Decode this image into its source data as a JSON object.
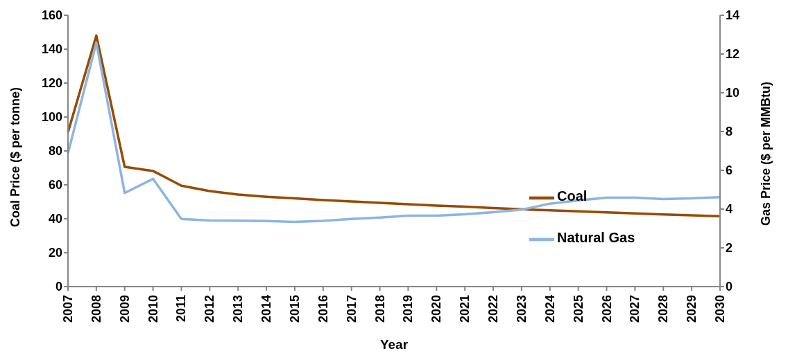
{
  "chart_data": {
    "type": "line",
    "xlabel": "Year",
    "ylabel": "Coal Price ($ per tonne)",
    "y2label": "Gas Price ($ per MMBtu)",
    "categories": [
      "2007",
      "2008",
      "2009",
      "2010",
      "2011",
      "2012",
      "2013",
      "2014",
      "2015",
      "2016",
      "2017",
      "2018",
      "2019",
      "2020",
      "2021",
      "2022",
      "2023",
      "2024",
      "2025",
      "2026",
      "2027",
      "2028",
      "2029",
      "2030"
    ],
    "series": [
      {
        "name": "Coal",
        "color": "#994a00",
        "values": [
          91,
          148,
          70.6,
          68.2,
          59.5,
          56.3,
          54.3,
          53,
          52,
          51,
          50.2,
          49.4,
          48.6,
          47.8,
          47.1,
          46.3,
          45.6,
          45,
          44.4,
          43.8,
          43.2,
          42.6,
          42,
          41.5
        ]
      },
      {
        "name": "Natural Gas",
        "color": "#8db4e2",
        "axis": "y2",
        "values": [
          6.88,
          12.58,
          4.83,
          5.56,
          3.49,
          3.41,
          3.4,
          3.38,
          3.34,
          3.39,
          3.49,
          3.56,
          3.66,
          3.66,
          3.73,
          3.84,
          3.97,
          4.28,
          4.45,
          4.59,
          4.59,
          4.52,
          4.55,
          4.62
        ]
      }
    ],
    "ylim": [
      0,
      160
    ],
    "yticks": [
      0,
      20,
      40,
      60,
      80,
      100,
      120,
      140,
      160
    ],
    "y2lim": [
      0,
      14
    ],
    "y2ticks": [
      0,
      2,
      4,
      6,
      8,
      10,
      12,
      14
    ],
    "legend": "right",
    "grid": false,
    "marker": "none",
    "line_style": "solid"
  }
}
